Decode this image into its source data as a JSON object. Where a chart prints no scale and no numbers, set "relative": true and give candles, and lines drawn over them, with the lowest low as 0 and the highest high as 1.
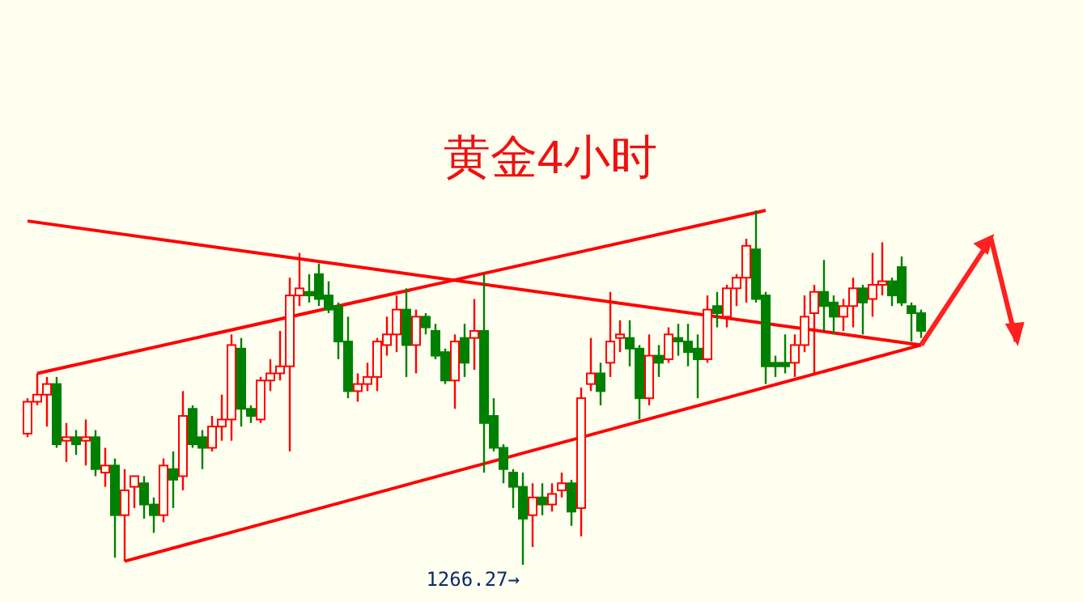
{
  "chart_data": {
    "type": "candlestick",
    "title": "黄金4小时",
    "relative": true,
    "categories": [
      null,
      null,
      null,
      null,
      null,
      null,
      null,
      null,
      null,
      null,
      null,
      null,
      null,
      null,
      null,
      null,
      null,
      null,
      null,
      null,
      null,
      null,
      null,
      null,
      null,
      null,
      null,
      null,
      null,
      null,
      null,
      null,
      null,
      null,
      null,
      null,
      null,
      null,
      null,
      null,
      null,
      null,
      null,
      null,
      null,
      null,
      null,
      null,
      null,
      null,
      null,
      null,
      null,
      null,
      null,
      null,
      null,
      null,
      null,
      null,
      null,
      null,
      null,
      null,
      null,
      null,
      null,
      null,
      null,
      null,
      null,
      null,
      null,
      null,
      null,
      null,
      null,
      null,
      null,
      null,
      null,
      null,
      null,
      null,
      null,
      null,
      null,
      null,
      null,
      null,
      null,
      null,
      null
    ],
    "ohlc": [
      [
        0.37,
        0.47,
        0.36,
        0.46
      ],
      [
        0.46,
        0.54,
        0.45,
        0.48
      ],
      [
        0.48,
        0.53,
        0.39,
        0.51
      ],
      [
        0.51,
        0.53,
        0.33,
        0.34
      ],
      [
        0.35,
        0.4,
        0.29,
        0.36
      ],
      [
        0.36,
        0.38,
        0.31,
        0.34
      ],
      [
        0.35,
        0.41,
        0.28,
        0.36
      ],
      [
        0.36,
        0.38,
        0.25,
        0.27
      ],
      [
        0.26,
        0.33,
        0.22,
        0.28
      ],
      [
        0.28,
        0.3,
        0.02,
        0.14
      ],
      [
        0.14,
        0.27,
        0.01,
        0.21
      ],
      [
        0.22,
        0.25,
        0.16,
        0.25
      ],
      [
        0.23,
        0.25,
        0.13,
        0.17
      ],
      [
        0.17,
        0.19,
        0.09,
        0.14
      ],
      [
        0.14,
        0.3,
        0.12,
        0.28
      ],
      [
        0.27,
        0.32,
        0.16,
        0.24
      ],
      [
        0.25,
        0.49,
        0.21,
        0.42
      ],
      [
        0.44,
        0.45,
        0.33,
        0.34
      ],
      [
        0.36,
        0.38,
        0.27,
        0.33
      ],
      [
        0.33,
        0.42,
        0.32,
        0.39
      ],
      [
        0.39,
        0.48,
        0.35,
        0.41
      ],
      [
        0.41,
        0.65,
        0.35,
        0.62
      ],
      [
        0.61,
        0.64,
        0.39,
        0.44
      ],
      [
        0.44,
        0.45,
        0.4,
        0.42
      ],
      [
        0.41,
        0.53,
        0.4,
        0.52
      ],
      [
        0.52,
        0.58,
        0.49,
        0.54
      ],
      [
        0.54,
        0.66,
        0.52,
        0.56
      ],
      [
        0.56,
        0.81,
        0.32,
        0.76
      ],
      [
        0.76,
        0.88,
        0.73,
        0.78
      ],
      [
        0.77,
        0.82,
        0.74,
        0.76
      ],
      [
        0.82,
        0.85,
        0.73,
        0.75
      ],
      [
        0.76,
        0.8,
        0.71,
        0.72
      ],
      [
        0.73,
        0.74,
        0.58,
        0.63
      ],
      [
        0.63,
        0.7,
        0.47,
        0.49
      ],
      [
        0.49,
        0.54,
        0.46,
        0.51
      ],
      [
        0.51,
        0.57,
        0.49,
        0.53
      ],
      [
        0.53,
        0.64,
        0.49,
        0.63
      ],
      [
        0.62,
        0.7,
        0.59,
        0.65
      ],
      [
        0.65,
        0.76,
        0.6,
        0.72
      ],
      [
        0.72,
        0.78,
        0.53,
        0.62
      ],
      [
        0.62,
        0.72,
        0.54,
        0.7
      ],
      [
        0.7,
        0.71,
        0.65,
        0.67
      ],
      [
        0.66,
        0.68,
        0.58,
        0.59
      ],
      [
        0.6,
        0.61,
        0.51,
        0.52
      ],
      [
        0.52,
        0.65,
        0.44,
        0.63
      ],
      [
        0.64,
        0.68,
        0.53,
        0.57
      ],
      [
        0.64,
        0.75,
        0.55,
        0.66
      ],
      [
        0.66,
        0.82,
        0.26,
        0.4
      ],
      [
        0.42,
        0.47,
        0.32,
        0.33
      ],
      [
        0.33,
        0.34,
        0.23,
        0.27
      ],
      [
        0.26,
        0.27,
        0.16,
        0.22
      ],
      [
        0.22,
        0.26,
        0,
        0.13
      ],
      [
        0.14,
        0.23,
        0.05,
        0.19
      ],
      [
        0.19,
        0.23,
        0.14,
        0.17
      ],
      [
        0.17,
        0.23,
        0.15,
        0.2
      ],
      [
        0.21,
        0.26,
        0.19,
        0.23
      ],
      [
        0.23,
        0.24,
        0.11,
        0.15
      ],
      [
        0.16,
        0.5,
        0.08,
        0.47
      ],
      [
        0.51,
        0.64,
        0.49,
        0.54
      ],
      [
        0.54,
        0.57,
        0.45,
        0.49
      ],
      [
        0.57,
        0.77,
        0.53,
        0.63
      ],
      [
        0.64,
        0.69,
        0.6,
        0.65
      ],
      [
        0.64,
        0.69,
        0.56,
        0.61
      ],
      [
        0.61,
        0.62,
        0.41,
        0.47
      ],
      [
        0.47,
        0.65,
        0.45,
        0.59
      ],
      [
        0.59,
        0.62,
        0.53,
        0.57
      ],
      [
        0.58,
        0.67,
        0.57,
        0.65
      ],
      [
        0.64,
        0.68,
        0.59,
        0.63
      ],
      [
        0.63,
        0.68,
        0.56,
        0.6
      ],
      [
        0.61,
        0.65,
        0.47,
        0.58
      ],
      [
        0.58,
        0.76,
        0.57,
        0.72
      ],
      [
        0.73,
        0.77,
        0.67,
        0.71
      ],
      [
        0.7,
        0.79,
        0.67,
        0.78
      ],
      [
        0.78,
        0.82,
        0.73,
        0.81
      ],
      [
        0.81,
        0.92,
        0.74,
        0.9
      ],
      [
        0.89,
        1.0,
        0.74,
        0.75
      ],
      [
        0.76,
        0.77,
        0.51,
        0.56
      ],
      [
        0.57,
        0.59,
        0.53,
        0.56
      ],
      [
        0.57,
        0.65,
        0.54,
        0.56
      ],
      [
        0.57,
        0.65,
        0.53,
        0.62
      ],
      [
        0.62,
        0.76,
        0.6,
        0.7
      ],
      [
        0.71,
        0.79,
        0.54,
        0.77
      ],
      [
        0.77,
        0.86,
        0.66,
        0.73
      ],
      [
        0.74,
        0.76,
        0.65,
        0.7
      ],
      [
        0.7,
        0.75,
        0.66,
        0.73
      ],
      [
        0.73,
        0.81,
        0.67,
        0.78
      ],
      [
        0.78,
        0.79,
        0.65,
        0.74
      ],
      [
        0.75,
        0.88,
        0.7,
        0.79
      ],
      [
        0.79,
        0.91,
        0.76,
        0.8
      ],
      [
        0.8,
        0.81,
        0.73,
        0.76
      ],
      [
        0.84,
        0.87,
        0.73,
        0.74
      ],
      [
        0.73,
        0.74,
        0.63,
        0.71
      ],
      [
        0.71,
        0.72,
        0.64,
        0.66
      ]
    ],
    "colors": [
      "#ff0000",
      "#ff0000",
      "#ff0000",
      "#008000",
      "#ff0000",
      "#008000",
      "#ff0000",
      "#008000",
      "#ff0000",
      "#008000",
      "#ff0000",
      "#ff0000",
      "#008000",
      "#008000",
      "#ff0000",
      "#008000",
      "#ff0000",
      "#008000",
      "#008000",
      "#ff0000",
      "#ff0000",
      "#ff0000",
      "#008000",
      "#008000",
      "#ff0000",
      "#ff0000",
      "#ff0000",
      "#ff0000",
      "#ff0000",
      "#008000",
      "#008000",
      "#008000",
      "#008000",
      "#008000",
      "#ff0000",
      "#ff0000",
      "#ff0000",
      "#ff0000",
      "#ff0000",
      "#008000",
      "#ff0000",
      "#008000",
      "#008000",
      "#008000",
      "#ff0000",
      "#008000",
      "#ff0000",
      "#008000",
      "#008000",
      "#008000",
      "#008000",
      "#008000",
      "#ff0000",
      "#008000",
      "#ff0000",
      "#ff0000",
      "#008000",
      "#ff0000",
      "#ff0000",
      "#008000",
      "#ff0000",
      "#ff0000",
      "#008000",
      "#008000",
      "#ff0000",
      "#008000",
      "#ff0000",
      "#008000",
      "#008000",
      "#008000",
      "#ff0000",
      "#008000",
      "#ff0000",
      "#ff0000",
      "#ff0000",
      "#008000",
      "#008000",
      "#008000",
      "#008000",
      "#ff0000",
      "#ff0000",
      "#ff0000",
      "#008000",
      "#008000",
      "#ff0000",
      "#ff0000",
      "#008000",
      "#ff0000",
      "#ff0000",
      "#008000",
      "#008000",
      "#008000",
      "#008000"
    ],
    "series": [
      {
        "type": "line",
        "color": "#ff0000",
        "values": [
          null,
          0.54,
          null,
          null,
          null,
          null,
          null,
          null,
          null,
          null,
          null,
          null,
          null,
          null,
          null,
          null,
          null,
          null,
          null,
          null,
          null,
          null,
          null,
          null,
          null,
          null,
          null,
          null,
          null,
          null,
          null,
          null,
          null,
          null,
          null,
          null,
          null,
          null,
          null,
          null,
          null,
          null,
          null,
          null,
          null,
          null,
          null,
          null,
          null,
          null,
          null,
          null,
          null,
          null,
          null,
          null,
          null,
          null,
          null,
          null,
          null,
          null,
          null,
          null,
          null,
          null,
          null,
          null,
          null,
          null,
          null,
          null,
          null,
          null,
          null,
          null,
          1.0,
          null,
          null,
          null,
          null,
          null,
          null,
          null,
          null,
          null,
          null,
          null,
          null,
          null,
          null,
          null,
          null
        ]
      },
      {
        "type": "line",
        "color": "#ff0000",
        "values": [
          null,
          null,
          null,
          null,
          null,
          null,
          null,
          null,
          null,
          null,
          0.01,
          null,
          null,
          null,
          null,
          null,
          null,
          null,
          null,
          null,
          null,
          null,
          null,
          null,
          null,
          null,
          null,
          null,
          null,
          null,
          null,
          null,
          null,
          null,
          null,
          null,
          null,
          null,
          null,
          null,
          null,
          null,
          null,
          null,
          null,
          null,
          null,
          null,
          null,
          null,
          null,
          null,
          null,
          null,
          null,
          null,
          null,
          null,
          null,
          null,
          null,
          null,
          null,
          null,
          null,
          null,
          null,
          null,
          null,
          null,
          null,
          null,
          null,
          null,
          null,
          null,
          null,
          null,
          null,
          null,
          null,
          null,
          null,
          null,
          null,
          null,
          null,
          null,
          null,
          null,
          null,
          null,
          0.62
        ]
      },
      {
        "type": "line",
        "color": "#ff0000",
        "values": [
          0.97,
          null,
          null,
          null,
          null,
          null,
          null,
          null,
          null,
          null,
          null,
          null,
          null,
          null,
          null,
          null,
          null,
          null,
          null,
          null,
          null,
          null,
          null,
          null,
          null,
          null,
          null,
          null,
          null,
          null,
          null,
          null,
          null,
          null,
          null,
          null,
          null,
          null,
          null,
          null,
          null,
          null,
          null,
          null,
          null,
          null,
          null,
          null,
          null,
          null,
          null,
          null,
          null,
          null,
          null,
          null,
          null,
          null,
          null,
          null,
          null,
          null,
          null,
          null,
          null,
          null,
          null,
          null,
          null,
          null,
          null,
          null,
          null,
          null,
          null,
          null,
          null,
          null,
          null,
          null,
          null,
          null,
          null,
          null,
          null,
          null,
          null,
          null,
          null,
          null,
          null,
          null,
          0.62
        ]
      }
    ],
    "annotations": [
      "1266.27→"
    ]
  }
}
